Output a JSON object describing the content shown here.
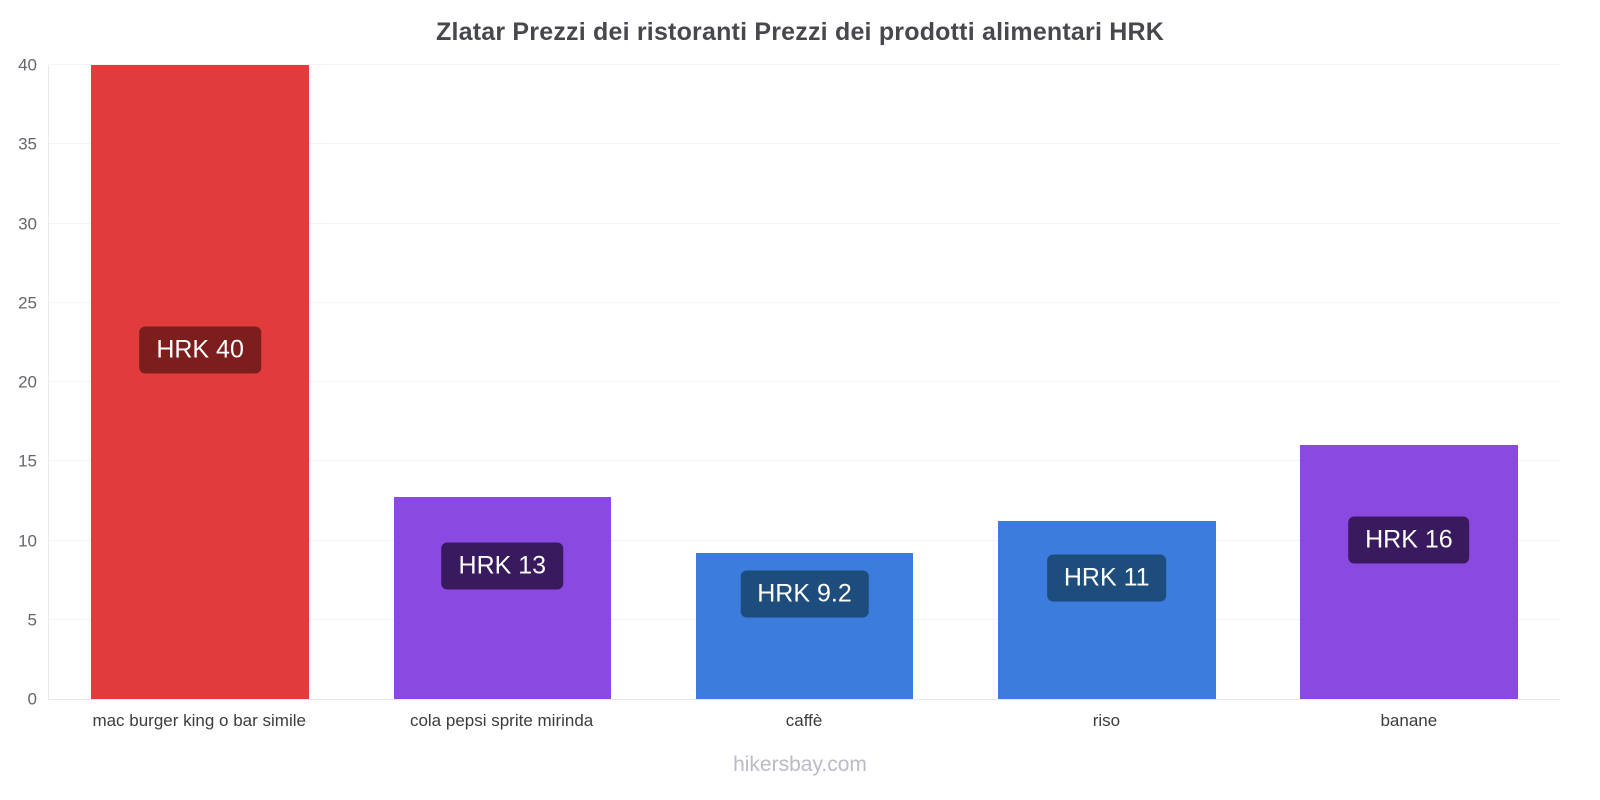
{
  "title": "Zlatar Prezzi dei ristoranti Prezzi dei prodotti alimentari HRK",
  "footer": "hikersbay.com",
  "chart_data": {
    "type": "bar",
    "title": "Zlatar Prezzi dei ristoranti Prezzi dei prodotti alimentari HRK",
    "currency": "HRK",
    "categories": [
      "mac burger king o bar simile",
      "cola pepsi sprite mirinda",
      "caffè",
      "riso",
      "banane"
    ],
    "values": [
      40,
      12.75,
      9.2,
      11.2,
      16
    ],
    "labels": [
      "HRK 40",
      "HRK 13",
      "HRK 9.2",
      "HRK 11",
      "HRK 16"
    ],
    "bar_colors": [
      "#e23b3b",
      "#8a4ae2",
      "#3b7cdc",
      "#3b7cdc",
      "#8a4ae2"
    ],
    "badge_colors": [
      "#7c1e1e",
      "#3a1a5e",
      "#1c4d7d",
      "#1c4d7d",
      "#3a1a5e"
    ],
    "xlabel": "",
    "ylabel": "",
    "ylim": [
      0,
      40
    ],
    "yticks": [
      0,
      5,
      10,
      15,
      20,
      25,
      30,
      35,
      40
    ],
    "grid": true,
    "legend": false,
    "watermark": "hikersbay.com"
  }
}
